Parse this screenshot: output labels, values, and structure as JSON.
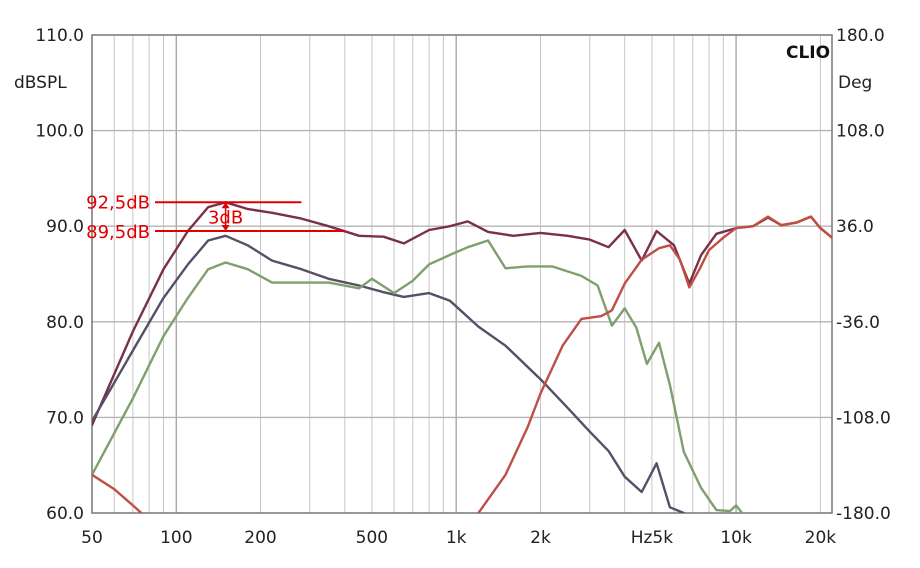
{
  "chart_data": {
    "type": "line",
    "brand": "CLIO",
    "y_left_label": "dBSPL",
    "y_right_label": "Deg",
    "x_scale": "log",
    "xlim": [
      50,
      22000
    ],
    "ylim": [
      60,
      110
    ],
    "y_right_lim": [
      -180,
      180
    ],
    "grid": true,
    "x_ticks": [
      {
        "v": 50,
        "label": "50"
      },
      {
        "v": 100,
        "label": "100"
      },
      {
        "v": 200,
        "label": "200"
      },
      {
        "v": 500,
        "label": "500"
      },
      {
        "v": 1000,
        "label": "1k"
      },
      {
        "v": 2000,
        "label": "2k"
      },
      {
        "v": 5000,
        "label": "Hz5k"
      },
      {
        "v": 10000,
        "label": "10k"
      },
      {
        "v": 20000,
        "label": "20k"
      }
    ],
    "y_left_ticks": [
      {
        "v": 110,
        "label": "110.0"
      },
      {
        "v": 100,
        "label": "100.0"
      },
      {
        "v": 90,
        "label": "90.0"
      },
      {
        "v": 80,
        "label": "80.0"
      },
      {
        "v": 70,
        "label": "70.0"
      },
      {
        "v": 60,
        "label": "60.0"
      }
    ],
    "y_right_ticks": [
      {
        "v": 180,
        "label": "180.0"
      },
      {
        "v": 108,
        "label": "108.0"
      },
      {
        "v": 36,
        "label": "36.0"
      },
      {
        "v": -36,
        "label": "-36.0"
      },
      {
        "v": -108,
        "label": "-108.0"
      },
      {
        "v": -180,
        "label": "-180.0"
      }
    ],
    "series": [
      {
        "color": "#7a2f4a",
        "points": [
          [
            50,
            69.2
          ],
          [
            70,
            79
          ],
          [
            90,
            85.5
          ],
          [
            110,
            89.5
          ],
          [
            130,
            92
          ],
          [
            150,
            92.5
          ],
          [
            180,
            91.8
          ],
          [
            220,
            91.4
          ],
          [
            280,
            90.8
          ],
          [
            350,
            90
          ],
          [
            450,
            89
          ],
          [
            550,
            88.9
          ],
          [
            650,
            88.2
          ],
          [
            800,
            89.6
          ],
          [
            950,
            90
          ],
          [
            1100,
            90.5
          ],
          [
            1300,
            89.4
          ],
          [
            1600,
            89
          ],
          [
            2000,
            89.3
          ],
          [
            2500,
            89
          ],
          [
            3000,
            88.6
          ],
          [
            3500,
            87.8
          ],
          [
            4000,
            89.6
          ],
          [
            4600,
            86.4
          ],
          [
            5200,
            89.5
          ],
          [
            6000,
            88
          ],
          [
            6800,
            84
          ],
          [
            7500,
            87
          ],
          [
            8500,
            89.2
          ],
          [
            10000,
            89.8
          ],
          [
            11500,
            90
          ],
          [
            13000,
            90.9
          ],
          [
            14500,
            90.1
          ],
          [
            16500,
            90.4
          ],
          [
            18500,
            91
          ],
          [
            20000,
            89.8
          ],
          [
            22000,
            88.8
          ]
        ]
      },
      {
        "color": "#555068",
        "points": [
          [
            50,
            69.6
          ],
          [
            70,
            77
          ],
          [
            90,
            82.5
          ],
          [
            110,
            86
          ],
          [
            130,
            88.5
          ],
          [
            150,
            89
          ],
          [
            180,
            88
          ],
          [
            220,
            86.4
          ],
          [
            280,
            85.5
          ],
          [
            350,
            84.5
          ],
          [
            450,
            83.8
          ],
          [
            550,
            83.1
          ],
          [
            650,
            82.6
          ],
          [
            800,
            83
          ],
          [
            950,
            82.2
          ],
          [
            1200,
            79.5
          ],
          [
            1500,
            77.5
          ],
          [
            2000,
            74
          ],
          [
            2500,
            71
          ],
          [
            3000,
            68.5
          ],
          [
            3500,
            66.5
          ],
          [
            4000,
            63.8
          ],
          [
            4600,
            62.2
          ],
          [
            5200,
            65.2
          ],
          [
            5800,
            60.6
          ],
          [
            6500,
            60
          ]
        ]
      },
      {
        "color": "#7fa06e",
        "points": [
          [
            50,
            64
          ],
          [
            70,
            72
          ],
          [
            90,
            78.5
          ],
          [
            110,
            82.5
          ],
          [
            130,
            85.5
          ],
          [
            150,
            86.2
          ],
          [
            180,
            85.5
          ],
          [
            220,
            84.1
          ],
          [
            280,
            84.1
          ],
          [
            350,
            84.1
          ],
          [
            450,
            83.5
          ],
          [
            500,
            84.5
          ],
          [
            600,
            83
          ],
          [
            700,
            84.3
          ],
          [
            800,
            86
          ],
          [
            950,
            87
          ],
          [
            1100,
            87.8
          ],
          [
            1300,
            88.5
          ],
          [
            1500,
            85.6
          ],
          [
            1800,
            85.8
          ],
          [
            2200,
            85.8
          ],
          [
            2800,
            84.8
          ],
          [
            3200,
            83.8
          ],
          [
            3600,
            79.6
          ],
          [
            4000,
            81.4
          ],
          [
            4400,
            79.4
          ],
          [
            4800,
            75.6
          ],
          [
            5300,
            77.8
          ],
          [
            5800,
            73.4
          ],
          [
            6500,
            66.4
          ],
          [
            7500,
            62.6
          ],
          [
            8500,
            60.3
          ],
          [
            9500,
            60.2
          ],
          [
            10000,
            60.8
          ],
          [
            10500,
            60
          ]
        ]
      },
      {
        "color": "#c14e45",
        "points": [
          [
            50,
            64
          ],
          [
            60,
            62.5
          ],
          [
            70,
            60.8
          ],
          [
            75,
            60
          ]
        ]
      },
      {
        "color": "#c14e45",
        "points": [
          [
            1200,
            60
          ],
          [
            1500,
            64
          ],
          [
            1800,
            69
          ],
          [
            2000,
            72.5
          ],
          [
            2400,
            77.5
          ],
          [
            2800,
            80.3
          ],
          [
            3300,
            80.6
          ],
          [
            3600,
            81.2
          ],
          [
            4000,
            84
          ],
          [
            4600,
            86.5
          ],
          [
            5300,
            87.7
          ],
          [
            5800,
            88
          ],
          [
            6300,
            86.5
          ],
          [
            6800,
            83.6
          ],
          [
            7400,
            85.5
          ],
          [
            8000,
            87.5
          ],
          [
            9000,
            88.8
          ],
          [
            10000,
            89.8
          ],
          [
            11500,
            90
          ],
          [
            13000,
            91
          ],
          [
            14500,
            90.1
          ],
          [
            16500,
            90.4
          ],
          [
            18500,
            91
          ],
          [
            20000,
            89.8
          ],
          [
            22000,
            88.8
          ]
        ]
      }
    ],
    "annotations": {
      "peak_label": "92,5dB",
      "ref_label": "89,5dB",
      "delta_label": "3dB",
      "peak_value": 92.5,
      "ref_value": 89.5
    }
  }
}
